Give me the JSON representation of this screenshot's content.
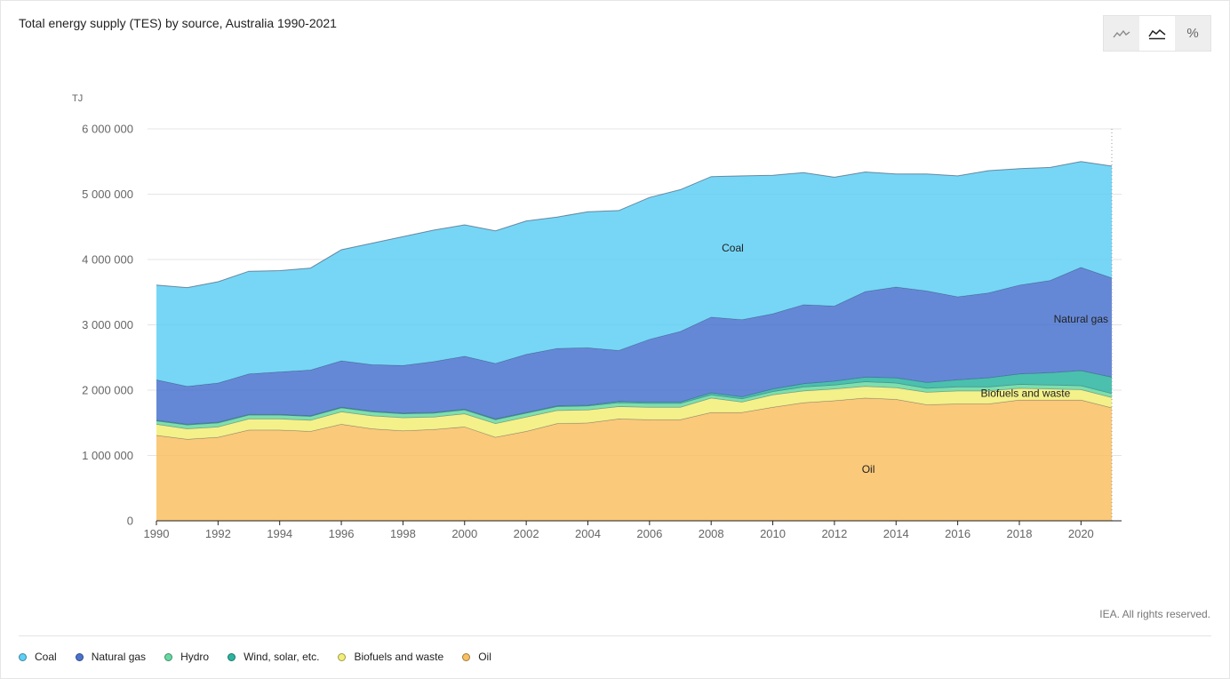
{
  "title": "Total energy supply (TES) by source, Australia 1990-2021",
  "toggle": {
    "line_icon": "line-chart-icon",
    "area_icon": "area-chart-icon",
    "percent_label": "%"
  },
  "copyright": "IEA. All rights reserved.",
  "legend": [
    {
      "label": "Coal",
      "color": "#5fcff5"
    },
    {
      "label": "Natural gas",
      "color": "#4a73cf"
    },
    {
      "label": "Hydro",
      "color": "#66d9a0"
    },
    {
      "label": "Wind, solar, etc.",
      "color": "#2bb5a0"
    },
    {
      "label": "Biofuels and waste",
      "color": "#f2ee77"
    },
    {
      "label": "Oil",
      "color": "#f9bf63"
    }
  ],
  "chart_data": {
    "type": "area",
    "stacked": true,
    "title": "Total energy supply (TES) by source, Australia 1990-2021",
    "ylabel": "TJ",
    "xlabel": "",
    "ylim": [
      0,
      6000000
    ],
    "yticks": [
      0,
      1000000,
      2000000,
      3000000,
      4000000,
      5000000,
      6000000
    ],
    "ytick_labels": [
      "0",
      "1 000 000",
      "2 000 000",
      "3 000 000",
      "4 000 000",
      "5 000 000",
      "6 000 000"
    ],
    "xticks": [
      1990,
      1992,
      1994,
      1996,
      1998,
      2000,
      2002,
      2004,
      2006,
      2008,
      2010,
      2012,
      2014,
      2016,
      2018,
      2020
    ],
    "xtick_labels": [
      "1990",
      "1992",
      "1994",
      "1996",
      "1998",
      "2000",
      "2002",
      "2004",
      "2006",
      "2008",
      "2010",
      "2012",
      "2014",
      "2016",
      "2018",
      "2020"
    ],
    "x": [
      1990,
      1991,
      1992,
      1993,
      1994,
      1995,
      1996,
      1997,
      1998,
      1999,
      2000,
      2001,
      2002,
      2003,
      2004,
      2005,
      2006,
      2007,
      2008,
      2009,
      2010,
      2011,
      2012,
      2013,
      2014,
      2015,
      2016,
      2017,
      2018,
      2019,
      2020,
      2021
    ],
    "series": [
      {
        "name": "Oil",
        "color": "#f9bf63",
        "values": [
          1310000,
          1250000,
          1280000,
          1390000,
          1390000,
          1370000,
          1480000,
          1410000,
          1380000,
          1400000,
          1440000,
          1280000,
          1370000,
          1490000,
          1500000,
          1560000,
          1550000,
          1550000,
          1660000,
          1660000,
          1740000,
          1810000,
          1840000,
          1880000,
          1860000,
          1780000,
          1790000,
          1790000,
          1850000,
          1850000,
          1850000,
          1730000
        ]
      },
      {
        "name": "Biofuels and waste",
        "color": "#f2ee77",
        "values": [
          170000,
          160000,
          160000,
          170000,
          170000,
          170000,
          190000,
          200000,
          200000,
          190000,
          200000,
          210000,
          220000,
          200000,
          200000,
          190000,
          190000,
          190000,
          220000,
          160000,
          190000,
          180000,
          180000,
          180000,
          180000,
          190000,
          200000,
          200000,
          180000,
          170000,
          160000,
          160000
        ]
      },
      {
        "name": "Hydro",
        "color": "#66d9a0",
        "values": [
          50000,
          60000,
          60000,
          60000,
          60000,
          60000,
          60000,
          60000,
          60000,
          60000,
          60000,
          60000,
          60000,
          60000,
          60000,
          60000,
          60000,
          60000,
          50000,
          50000,
          50000,
          60000,
          60000,
          70000,
          70000,
          60000,
          60000,
          60000,
          60000,
          60000,
          60000,
          60000
        ]
      },
      {
        "name": "Wind, solar, etc.",
        "color": "#2bb5a0",
        "values": [
          10000,
          10000,
          10000,
          10000,
          10000,
          10000,
          10000,
          10000,
          10000,
          10000,
          10000,
          10000,
          10000,
          10000,
          10000,
          20000,
          20000,
          20000,
          30000,
          30000,
          40000,
          50000,
          60000,
          70000,
          80000,
          90000,
          110000,
          140000,
          160000,
          190000,
          230000,
          250000
        ]
      },
      {
        "name": "Natural gas",
        "color": "#4a73cf",
        "values": [
          620000,
          580000,
          600000,
          620000,
          650000,
          700000,
          710000,
          710000,
          730000,
          780000,
          810000,
          850000,
          890000,
          880000,
          880000,
          780000,
          960000,
          1080000,
          1160000,
          1180000,
          1150000,
          1210000,
          1150000,
          1310000,
          1390000,
          1400000,
          1270000,
          1300000,
          1360000,
          1410000,
          1580000,
          1520000
        ]
      },
      {
        "name": "Coal",
        "color": "#5fcff5",
        "values": [
          1450000,
          1510000,
          1550000,
          1570000,
          1550000,
          1560000,
          1700000,
          1860000,
          1970000,
          2010000,
          2010000,
          2030000,
          2040000,
          2010000,
          2080000,
          2140000,
          2170000,
          2170000,
          2150000,
          2200000,
          2120000,
          2020000,
          1970000,
          1830000,
          1730000,
          1790000,
          1850000,
          1870000,
          1780000,
          1730000,
          1620000,
          1710000
        ]
      }
    ],
    "area_labels": [
      {
        "series": "Coal",
        "text": "Coal"
      },
      {
        "series": "Natural gas",
        "text": "Natural gas"
      },
      {
        "series": "Biofuels and waste",
        "text": "Biofuels and waste"
      },
      {
        "series": "Oil",
        "text": "Oil"
      }
    ]
  }
}
